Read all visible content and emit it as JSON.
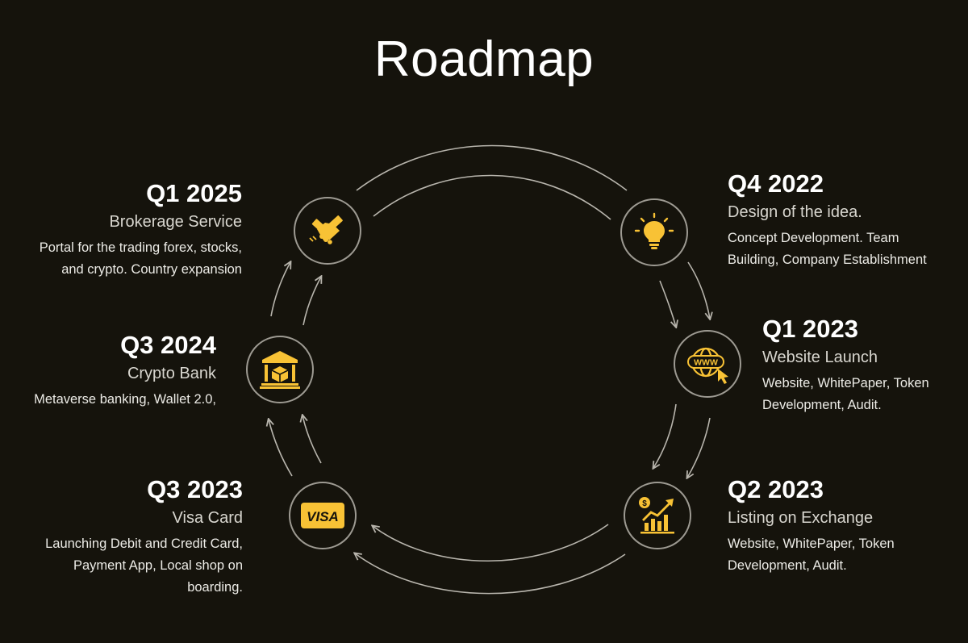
{
  "title": "Roadmap",
  "colors": {
    "background": "#15130c",
    "accent": "#f8c235",
    "ring": "#9d9a92",
    "arrow": "#b8b5ad"
  },
  "milestones": [
    {
      "period": "Q4 2022",
      "name": "Design of the idea.",
      "description": [
        "Concept Development. Team",
        "Building, Company Establishment"
      ],
      "icon": "lightbulb-icon"
    },
    {
      "period": "Q1 2023",
      "name": "Website Launch",
      "description": [
        "Website, WhitePaper, Token",
        "Development, Audit."
      ],
      "icon": "www-globe-icon"
    },
    {
      "period": "Q2 2023",
      "name": "Listing on Exchange",
      "description": [
        "Website, WhitePaper, Token",
        "Development, Audit."
      ],
      "icon": "growth-chart-icon"
    },
    {
      "period": "Q3 2023",
      "name": "Visa Card",
      "description": [
        "Launching Debit and Credit Card,",
        "Payment App, Local shop on",
        "boarding."
      ],
      "icon": "visa-card-icon",
      "icon_text": "VISA"
    },
    {
      "period": "Q3 2024",
      "name": "Crypto Bank",
      "description": [
        "Metaverse banking, Wallet 2.0,"
      ],
      "icon": "bank-icon"
    },
    {
      "period": "Q1 2025",
      "name": "Brokerage Service",
      "description": [
        "Portal for the trading forex, stocks,",
        "and crypto. Country expansion"
      ],
      "icon": "handshake-icon"
    }
  ]
}
